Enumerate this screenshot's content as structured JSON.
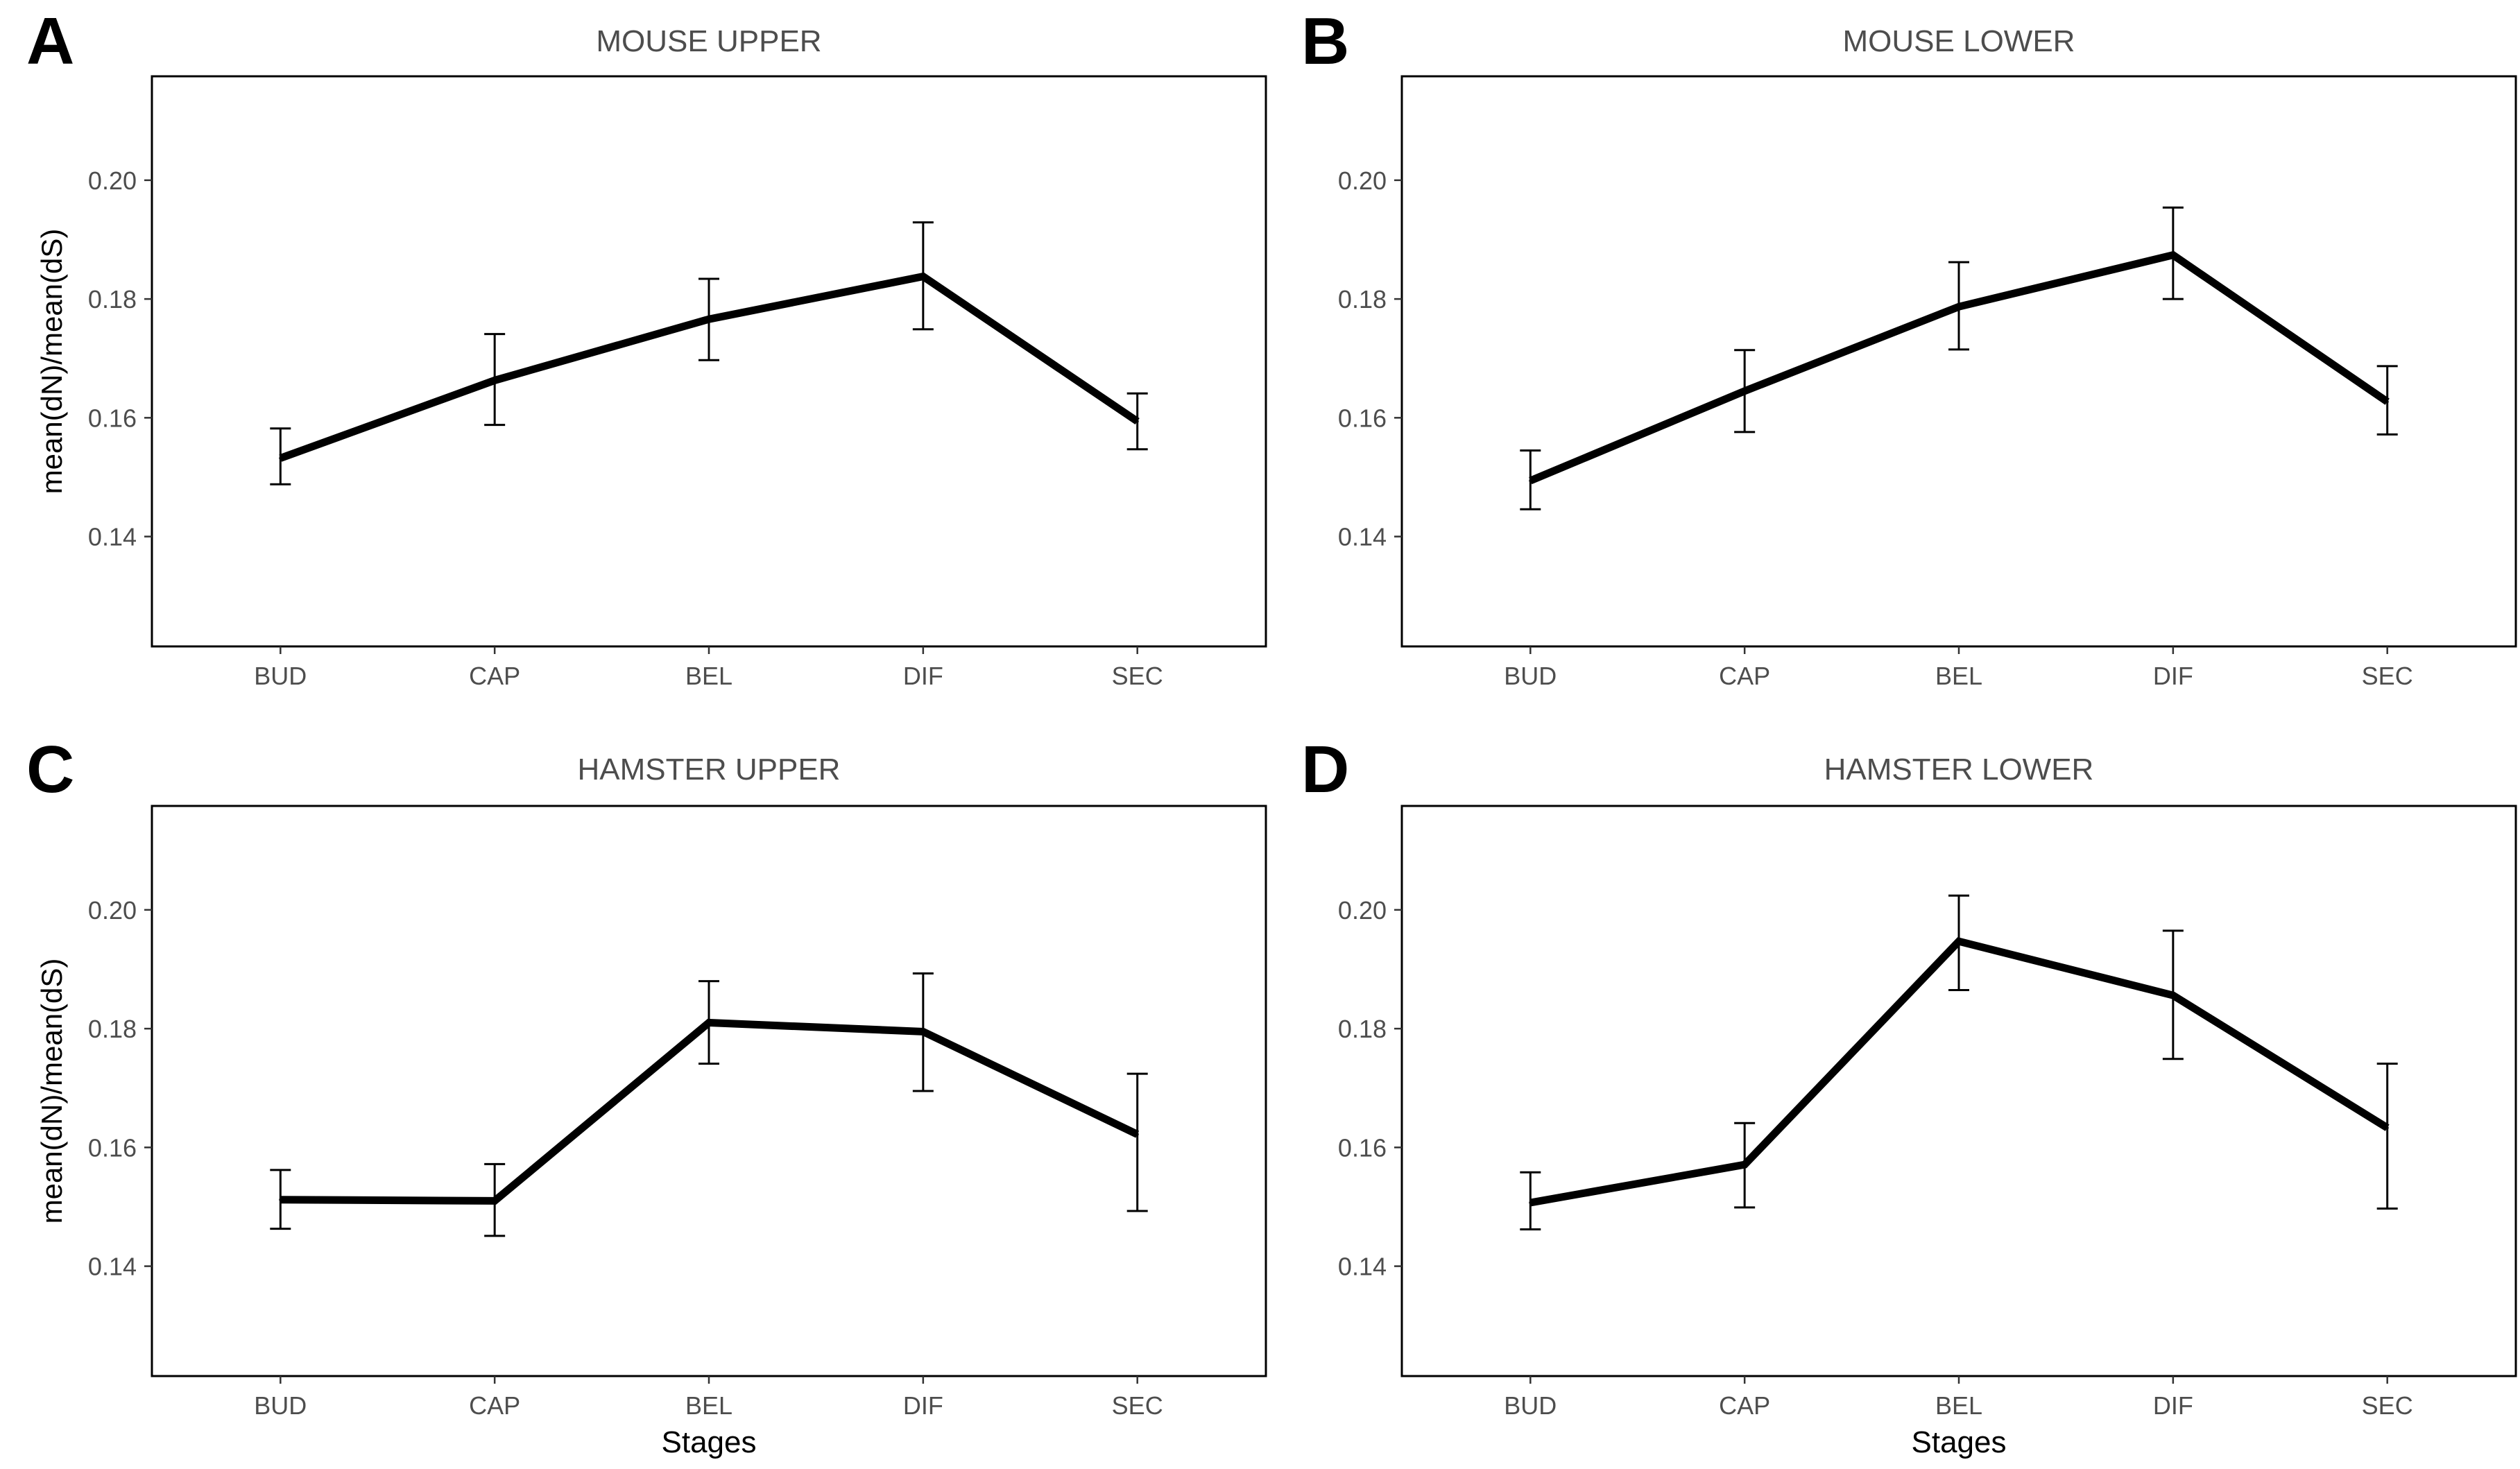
{
  "axis_labels": {
    "ylabel": "mean(dN)/mean(dS)",
    "xlabel": "Stages"
  },
  "chart_data": [
    {
      "panel": "A",
      "type": "line",
      "title": "MOUSE UPPER",
      "categories": [
        "BUD",
        "CAP",
        "BEL",
        "DIF",
        "SEC"
      ],
      "values": [
        0.1532,
        0.1663,
        0.1766,
        0.1838,
        0.1594
      ],
      "error_low": [
        0.1488,
        0.1588,
        0.1697,
        0.1749,
        0.1547
      ],
      "error_high": [
        0.1582,
        0.1741,
        0.1834,
        0.1929,
        0.1641
      ],
      "ylim": [
        0.1215,
        0.2175
      ],
      "yticks": [
        "0.14",
        "0.16",
        "0.18",
        "0.20"
      ],
      "ylabel": "mean(dN)/mean(dS)",
      "xlabel": "",
      "line_color": "#000000",
      "grid": false,
      "legend": "none"
    },
    {
      "panel": "B",
      "type": "line",
      "title": "MOUSE LOWER",
      "categories": [
        "BUD",
        "CAP",
        "BEL",
        "DIF",
        "SEC"
      ],
      "values": [
        0.1494,
        0.1645,
        0.1787,
        0.1874,
        0.1627
      ],
      "error_low": [
        0.1446,
        0.1576,
        0.1715,
        0.18,
        0.1572
      ],
      "error_high": [
        0.1545,
        0.1714,
        0.1862,
        0.1954,
        0.1687
      ],
      "ylim": [
        0.1215,
        0.2175
      ],
      "yticks": [
        "0.14",
        "0.16",
        "0.18",
        "0.20"
      ],
      "ylabel": "",
      "xlabel": "",
      "line_color": "#000000",
      "grid": false,
      "legend": "none"
    },
    {
      "panel": "C",
      "type": "line",
      "title": "HAMSTER UPPER",
      "categories": [
        "BUD",
        "CAP",
        "BEL",
        "DIF",
        "SEC"
      ],
      "values": [
        0.1512,
        0.151,
        0.181,
        0.1795,
        0.1622
      ],
      "error_low": [
        0.1463,
        0.1451,
        0.1741,
        0.1695,
        0.1493
      ],
      "error_high": [
        0.1562,
        0.1572,
        0.188,
        0.1893,
        0.1724
      ],
      "ylim": [
        0.1215,
        0.2175
      ],
      "yticks": [
        "0.14",
        "0.16",
        "0.18",
        "0.20"
      ],
      "ylabel": "mean(dN)/mean(dS)",
      "xlabel": "Stages",
      "line_color": "#000000",
      "grid": false,
      "legend": "none"
    },
    {
      "panel": "D",
      "type": "line",
      "title": "HAMSTER LOWER",
      "categories": [
        "BUD",
        "CAP",
        "BEL",
        "DIF",
        "SEC"
      ],
      "values": [
        0.1507,
        0.1571,
        0.1947,
        0.1856,
        0.1633
      ],
      "error_low": [
        0.1462,
        0.1499,
        0.1865,
        0.1749,
        0.1497
      ],
      "error_high": [
        0.1558,
        0.1641,
        0.2024,
        0.1965,
        0.1741
      ],
      "ylim": [
        0.1215,
        0.2175
      ],
      "yticks": [
        "0.14",
        "0.16",
        "0.18",
        "0.20"
      ],
      "ylabel": "",
      "xlabel": "Stages",
      "line_color": "#000000",
      "grid": false,
      "legend": "none"
    }
  ]
}
